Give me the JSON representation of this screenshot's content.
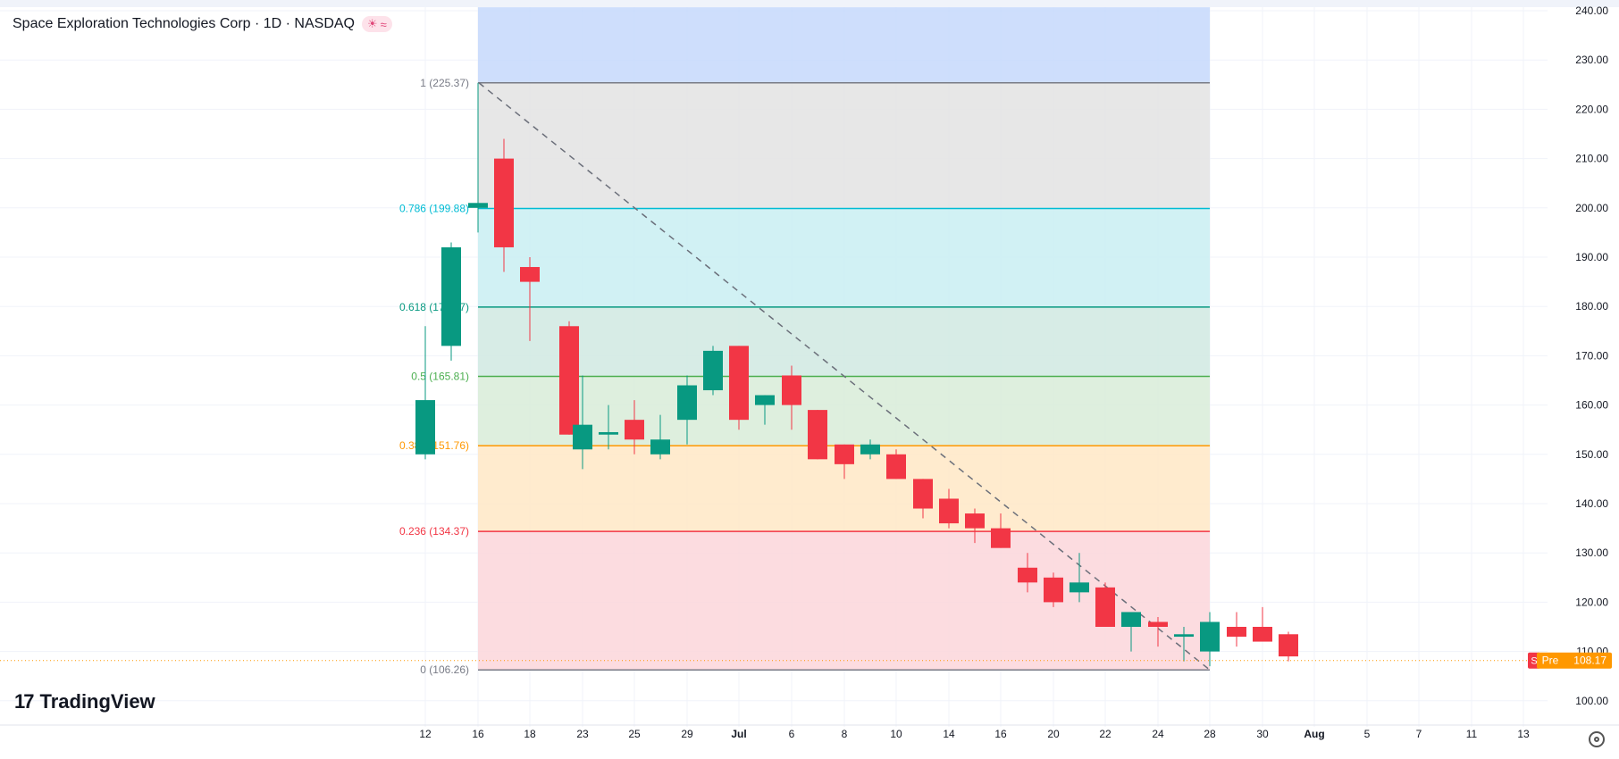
{
  "header": {
    "title": "Space Exploration Technologies Corp · 1D · NASDAQ",
    "badge_icons": [
      "sun-icon",
      "wave-icon"
    ]
  },
  "branding": {
    "logo_mark": "17",
    "logo_text": "TradingView"
  },
  "price_axis": {
    "ticks": [
      "240.00",
      "230.00",
      "220.00",
      "210.00",
      "200.00",
      "190.00",
      "180.00",
      "170.00",
      "160.00",
      "150.00",
      "140.00",
      "130.00",
      "120.00",
      "110.00",
      "100.00"
    ],
    "last_price_label": "108.17",
    "session_label": "Pre",
    "marker_letter": "S"
  },
  "time_axis": {
    "labels": [
      "12",
      "16",
      "18",
      "23",
      "25",
      "29",
      "Jul",
      "6",
      "8",
      "10",
      "14",
      "16",
      "20",
      "22",
      "24",
      "28",
      "30",
      "Aug",
      "5",
      "7",
      "11",
      "13"
    ]
  },
  "colors": {
    "up": "#089981",
    "down": "#f23645",
    "fib_0": "#787b86",
    "fib_236": "#f23645",
    "fib_382": "#ff9800",
    "fib_5": "#4caf50",
    "fib_618": "#089981",
    "fib_786": "#00bcd4",
    "fib_1": "#787b86",
    "pre_badge": "#ff9800"
  },
  "chart_data": {
    "type": "candlestick",
    "y_range": [
      97,
      242
    ],
    "last_price": 108.17,
    "fibonacci": [
      {
        "ratio": "1",
        "price": 225.37,
        "label": "1 (225.37)"
      },
      {
        "ratio": "0.786",
        "price": 199.88,
        "label": "0.786 (199.88)"
      },
      {
        "ratio": "0.618",
        "price": 179.87,
        "label": "0.618 (179.87)"
      },
      {
        "ratio": "0.5",
        "price": 165.81,
        "label": "0.5 (165.81)"
      },
      {
        "ratio": "0.382",
        "price": 151.76,
        "label": "0.382 (151.76)"
      },
      {
        "ratio": "0.236",
        "price": 134.37,
        "label": "0.236 (134.37)"
      },
      {
        "ratio": "0",
        "price": 106.26,
        "label": "0 (106.26)"
      }
    ],
    "candles": [
      {
        "d": "Jun 12",
        "o": 150,
        "h": 176,
        "l": 149,
        "c": 161
      },
      {
        "d": "Jun 13",
        "o": 172,
        "h": 193,
        "l": 169,
        "c": 192
      },
      {
        "d": "Jun 16",
        "o": 200,
        "h": 225.37,
        "l": 195,
        "c": 201
      },
      {
        "d": "Jun 17",
        "o": 210,
        "h": 214,
        "l": 187,
        "c": 192
      },
      {
        "d": "Jun 18",
        "o": 188,
        "h": 190,
        "l": 173,
        "c": 185
      },
      {
        "d": "Jun 20",
        "o": 176,
        "h": 177,
        "l": 154,
        "c": 154
      },
      {
        "d": "Jun 23",
        "o": 151,
        "h": 166,
        "l": 147,
        "c": 156
      },
      {
        "d": "Jun 24",
        "o": 154,
        "h": 160,
        "l": 151,
        "c": 154.5
      },
      {
        "d": "Jun 25",
        "o": 157,
        "h": 161,
        "l": 150,
        "c": 153
      },
      {
        "d": "Jun 27",
        "o": 150,
        "h": 158,
        "l": 149,
        "c": 153
      },
      {
        "d": "Jun 29",
        "o": 157,
        "h": 166,
        "l": 152,
        "c": 164
      },
      {
        "d": "Jun 30",
        "o": 163,
        "h": 172,
        "l": 162,
        "c": 171
      },
      {
        "d": "Jul 2",
        "o": 172,
        "h": 172,
        "l": 155,
        "c": 157
      },
      {
        "d": "Jul 3",
        "o": 160,
        "h": 162,
        "l": 156,
        "c": 162
      },
      {
        "d": "Jul 6",
        "o": 166,
        "h": 168,
        "l": 155,
        "c": 160
      },
      {
        "d": "Jul 7",
        "o": 159,
        "h": 159,
        "l": 149,
        "c": 149
      },
      {
        "d": "Jul 8",
        "o": 152,
        "h": 152,
        "l": 145,
        "c": 148
      },
      {
        "d": "Jul 9",
        "o": 150,
        "h": 153,
        "l": 149,
        "c": 152
      },
      {
        "d": "Jul 10",
        "o": 150,
        "h": 151,
        "l": 145,
        "c": 145
      },
      {
        "d": "Jul 13",
        "o": 145,
        "h": 145,
        "l": 137,
        "c": 139
      },
      {
        "d": "Jul 14",
        "o": 141,
        "h": 143,
        "l": 135,
        "c": 136
      },
      {
        "d": "Jul 15",
        "o": 138,
        "h": 139,
        "l": 132,
        "c": 135
      },
      {
        "d": "Jul 16",
        "o": 135,
        "h": 138,
        "l": 131,
        "c": 131
      },
      {
        "d": "Jul 17",
        "o": 127,
        "h": 130,
        "l": 122,
        "c": 124
      },
      {
        "d": "Jul 20",
        "o": 125,
        "h": 126,
        "l": 119,
        "c": 120
      },
      {
        "d": "Jul 21",
        "o": 122,
        "h": 130,
        "l": 120,
        "c": 124
      },
      {
        "d": "Jul 22",
        "o": 123,
        "h": 124,
        "l": 115,
        "c": 115
      },
      {
        "d": "Jul 23",
        "o": 115,
        "h": 118,
        "l": 110,
        "c": 118
      },
      {
        "d": "Jul 24",
        "o": 116,
        "h": 117,
        "l": 111,
        "c": 115
      },
      {
        "d": "Jul 27",
        "o": 113,
        "h": 115,
        "l": 108,
        "c": 113.5
      },
      {
        "d": "Jul 28",
        "o": 110,
        "h": 118,
        "l": 107,
        "c": 116
      },
      {
        "d": "Jul 29",
        "o": 115,
        "h": 118,
        "l": 111,
        "c": 113
      },
      {
        "d": "Jul 30",
        "o": 115,
        "h": 119,
        "l": 112,
        "c": 112
      },
      {
        "d": "Jul 31",
        "o": 113.5,
        "h": 114,
        "l": 108,
        "c": 109
      }
    ]
  }
}
